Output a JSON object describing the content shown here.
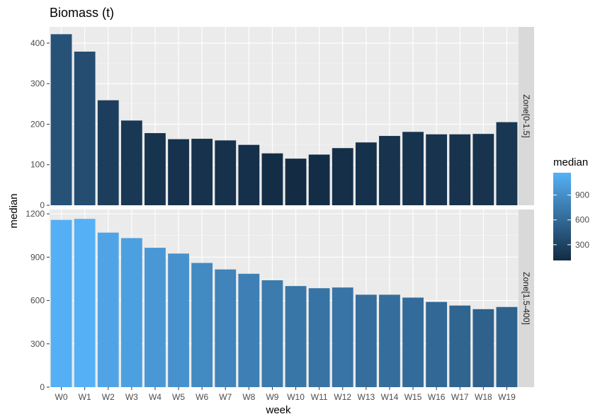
{
  "chart_data": {
    "type": "bar",
    "title": "Biomass (t)",
    "xlabel": "week",
    "ylabel": "median",
    "categories": [
      "W0",
      "W1",
      "W2",
      "W3",
      "W4",
      "W5",
      "W6",
      "W7",
      "W8",
      "W9",
      "W10",
      "W11",
      "W12",
      "W13",
      "W14",
      "W15",
      "W16",
      "W17",
      "W18",
      "W19"
    ],
    "facets": [
      {
        "label": "Zone[0-1.5]",
        "ylim": [
          0,
          440
        ],
        "yticks": [
          0,
          100,
          200,
          300,
          400
        ],
        "values": [
          422,
          379,
          259,
          209,
          178,
          163,
          164,
          160,
          149,
          128,
          115,
          125,
          141,
          155,
          171,
          181,
          175,
          175,
          176,
          205
        ]
      },
      {
        "label": "Zone[1.5-400]",
        "ylim": [
          0,
          1230
        ],
        "yticks": [
          0,
          300,
          600,
          900,
          1200
        ],
        "values": [
          1158,
          1165,
          1070,
          1032,
          965,
          925,
          860,
          815,
          785,
          740,
          700,
          685,
          690,
          640,
          640,
          620,
          590,
          565,
          540,
          555
        ]
      }
    ],
    "legend": {
      "title": "median",
      "position": "right",
      "ticks": [
        300,
        600,
        900
      ],
      "range": [
        110,
        1170
      ],
      "color_low": "#132b43",
      "color_high": "#56b1f7"
    },
    "grid": true,
    "panel_background": "#ebebeb",
    "strip_background": "#d9d9d9"
  }
}
